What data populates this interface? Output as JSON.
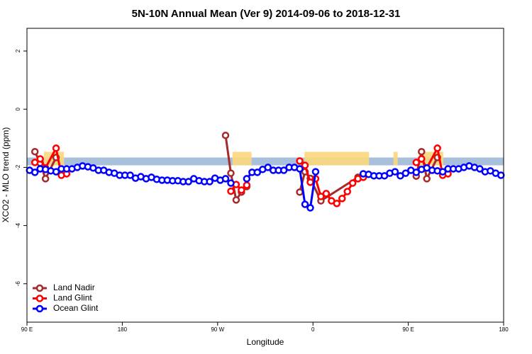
{
  "chart_data": {
    "type": "line",
    "title": "5N-10N Annual Mean (Ver 9)   2014-09-06 to 2018-12-31",
    "xlabel": "Longitude",
    "ylabel": "XCO2 - MLO trend (ppm)",
    "xlim": [
      90,
      540
    ],
    "ylim": [
      -7.32,
      2.78
    ],
    "xticks": [
      {
        "value": 90,
        "label": "90 E"
      },
      180,
      {
        "value": 270,
        "label": "90 W"
      },
      {
        "value": 360,
        "label": "0"
      },
      {
        "value": 450,
        "label": "90 E"
      },
      {
        "value": 540,
        "label": "180"
      }
    ],
    "yticks": [
      2,
      0,
      -2,
      -4,
      -6
    ],
    "legend": "bottom-left",
    "band": {
      "y": [
        -1.93,
        -1.66
      ],
      "color": "#a9c0dd"
    },
    "highlight_ranges": {
      "color": "#fbd77c",
      "x": [
        [
          106,
          125
        ],
        [
          284,
          302
        ],
        [
          352,
          413
        ],
        [
          436,
          440
        ],
        [
          460,
          483
        ]
      ]
    },
    "series": [
      {
        "name": "Land Nadir",
        "color": "#a52a2a",
        "x": [
          97.5,
          102.5,
          107.5,
          117.5,
          null,
          277.5,
          282.5,
          287.5,
          292.5,
          297.5,
          null,
          347.5,
          352.5,
          357.5,
          367.5,
          402.5,
          null,
          457.5,
          462.5,
          467.5,
          477.5
        ],
        "values": [
          -1.46,
          -1.85,
          -2.39,
          -1.66,
          null,
          -0.9,
          -2.2,
          -3.12,
          -2.85,
          -2.66,
          null,
          -2.85,
          -2.15,
          -2.38,
          -3.15,
          -2.34,
          null,
          -2.3,
          -1.46,
          -2.39,
          -1.66
        ]
      },
      {
        "name": "Land Glint",
        "color": "#ff0000",
        "x": [
          97.5,
          102.5,
          107.5,
          117.5,
          122.5,
          127.5,
          null,
          282.5,
          287.5,
          292.5,
          297.5,
          null,
          347.5,
          352.5,
          357.5,
          362.5,
          367.5,
          372.5,
          377.5,
          382.5,
          387.5,
          392.5,
          397.5,
          402.5,
          407.5,
          null,
          457.5,
          462.5,
          467.5,
          477.5,
          482.5,
          487.5
        ],
        "values": [
          -1.83,
          -1.71,
          -2.02,
          -1.34,
          -2.27,
          -2.22,
          null,
          -2.82,
          -2.59,
          -2.78,
          -2.61,
          null,
          -1.78,
          -1.93,
          -2.51,
          -2.39,
          -3.0,
          -2.9,
          -3.15,
          -3.24,
          -3.07,
          -2.83,
          -2.54,
          -2.39,
          -2.34,
          null,
          -1.83,
          -1.71,
          -2.02,
          -1.34,
          -2.27,
          -2.22
        ]
      },
      {
        "name": "Ocean Glint",
        "color": "#0000ff",
        "x": [
          92.5,
          97.5,
          102.5,
          107.5,
          112.5,
          117.5,
          122.5,
          127.5,
          132.5,
          137.5,
          142.5,
          147.5,
          152.5,
          157.5,
          162.5,
          167.5,
          172.5,
          177.5,
          182.5,
          187.5,
          192.5,
          197.5,
          202.5,
          207.5,
          212.5,
          217.5,
          222.5,
          227.5,
          232.5,
          237.5,
          242.5,
          247.5,
          252.5,
          257.5,
          262.5,
          267.5,
          272.5,
          277.5,
          282.5,
          287.5,
          292.5,
          297.5,
          302.5,
          307.5,
          312.5,
          317.5,
          322.5,
          327.5,
          332.5,
          337.5,
          342.5,
          347.5,
          352.5,
          357.5,
          362.5,
          367.5,
          372.5,
          377.5,
          382.5,
          387.5,
          392.5,
          397.5,
          402.5,
          407.5,
          412.5,
          417.5,
          422.5,
          427.5,
          432.5,
          437.5,
          442.5,
          447.5,
          452.5,
          457.5,
          462.5,
          467.5,
          472.5,
          477.5,
          482.5,
          487.5,
          492.5,
          497.5,
          502.5,
          507.5,
          512.5,
          517.5,
          522.5,
          527.5,
          532.5,
          537.5
        ],
        "values": [
          -2.1,
          -2.17,
          -2.05,
          -2.07,
          -2.12,
          -2.15,
          -2.05,
          -2.05,
          -2.05,
          -2.0,
          -1.95,
          -1.98,
          -2.02,
          -2.1,
          -2.1,
          -2.17,
          -2.2,
          -2.27,
          -2.27,
          -2.27,
          -2.37,
          -2.32,
          -2.39,
          -2.34,
          -2.41,
          -2.44,
          -2.44,
          -2.46,
          -2.46,
          -2.49,
          -2.49,
          -2.39,
          -2.46,
          -2.49,
          -2.49,
          -2.37,
          -2.44,
          -2.39,
          -2.54,
          null,
          null,
          -2.39,
          -2.17,
          -2.17,
          -2.07,
          -2.0,
          -2.1,
          -2.1,
          -2.1,
          -2.0,
          -2.0,
          -2.05,
          -3.27,
          -3.39,
          -2.15,
          null,
          null,
          null,
          null,
          null,
          null,
          null,
          null,
          -2.22,
          -2.24,
          -2.29,
          -2.29,
          -2.29,
          -2.2,
          -2.15,
          -2.29,
          -2.2,
          -2.1,
          -2.17,
          -2.07,
          -2.02,
          -2.1,
          -2.12,
          -2.15,
          -2.05,
          -2.05,
          -2.05,
          -2.0,
          -1.95,
          -2.0,
          -2.05,
          -2.15,
          -2.12,
          -2.2,
          -2.27
        ]
      }
    ]
  }
}
